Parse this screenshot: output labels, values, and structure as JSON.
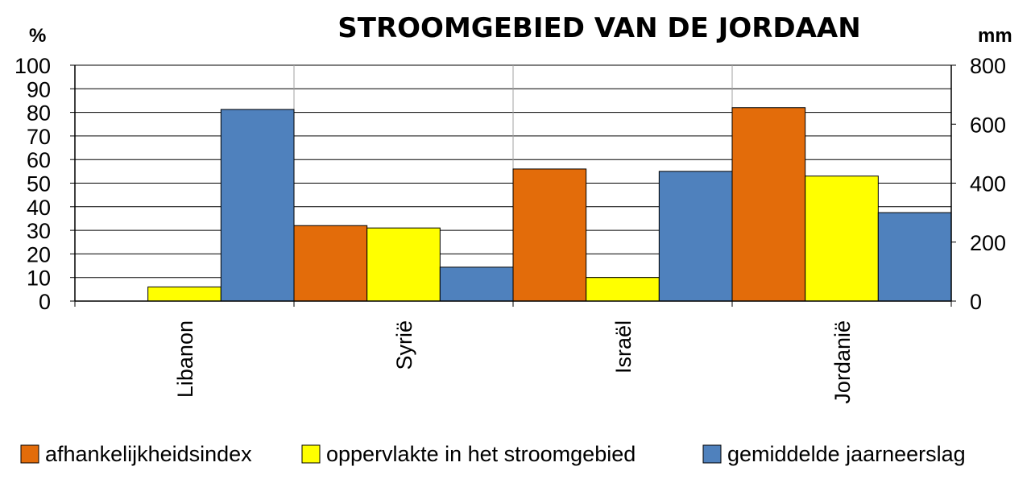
{
  "chart_data": {
    "type": "bar",
    "title": "STROOMGEBIED VAN DE JORDAAN",
    "y_left_label": "%",
    "y_right_label": "mm",
    "y_left_lim": [
      0,
      100
    ],
    "y_left_ticks": [
      0,
      10,
      20,
      30,
      40,
      50,
      60,
      70,
      80,
      90,
      100
    ],
    "y_right_lim": [
      0,
      800
    ],
    "y_right_ticks": [
      0,
      200,
      400,
      600,
      800
    ],
    "categories": [
      "Libanon",
      "Syrië",
      "Israël",
      "Jordanië"
    ],
    "series": [
      {
        "name": "afhankelijkheidsindex",
        "axis": "left",
        "color": "#E36C0A",
        "values": [
          0,
          32,
          56,
          82
        ]
      },
      {
        "name": "oppervlakte in het stroomgebied",
        "axis": "left",
        "color": "#FFFF00",
        "values": [
          6,
          31,
          10,
          53
        ]
      },
      {
        "name": "gemiddelde jaarneerslag",
        "axis": "right",
        "color": "#4F81BD",
        "values": [
          650,
          115,
          440,
          300
        ]
      }
    ],
    "grid": true,
    "legend_position": "bottom"
  }
}
